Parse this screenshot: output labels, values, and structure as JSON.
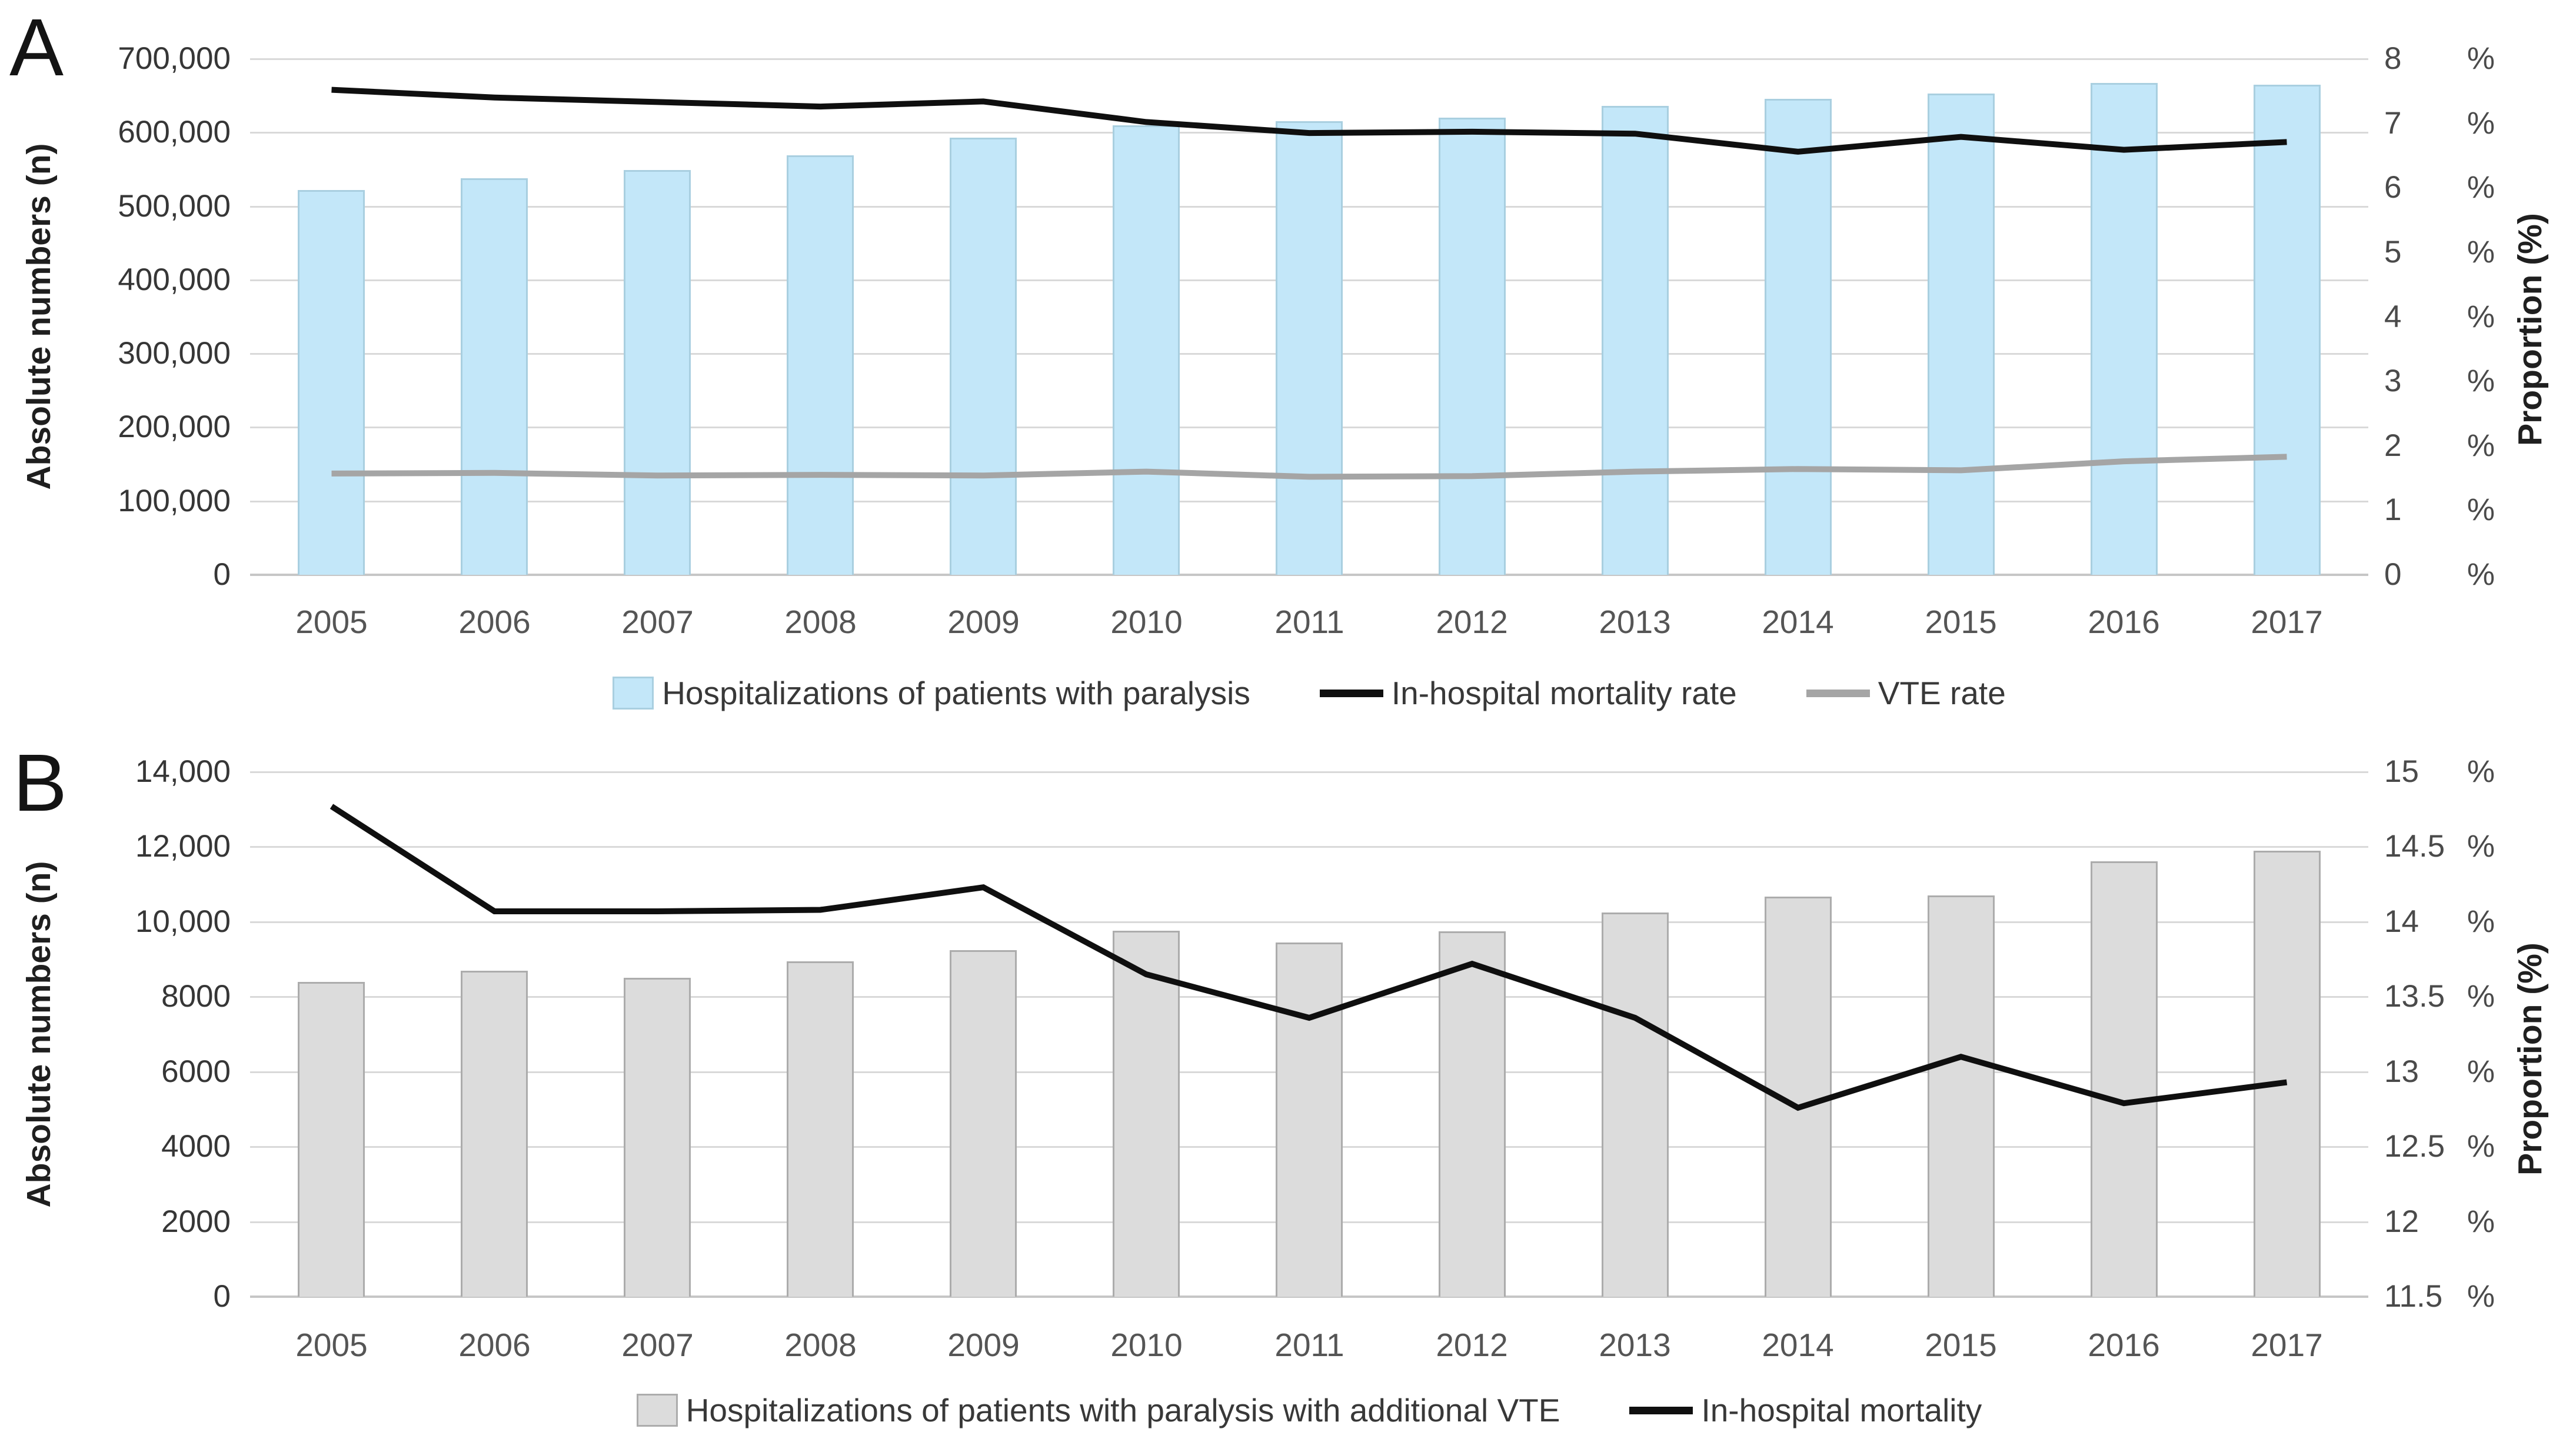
{
  "page": {
    "background": "#ffffff"
  },
  "colors": {
    "gridline": "#d9d9d9",
    "baseline": "#c6c6c6",
    "bar_blue_fill": "#c3e7f9",
    "bar_blue_border": "#a9cfe0",
    "bar_gray_fill": "#dcdcdc",
    "bar_gray_border": "#acacac",
    "line_black": "#0f0f0f",
    "line_gray": "#a5a5a5"
  },
  "chart_data": [
    {
      "type": "bar+line",
      "panel_letter": "A",
      "categories": [
        "2005",
        "2006",
        "2007",
        "2008",
        "2009",
        "2010",
        "2011",
        "2012",
        "2013",
        "2014",
        "2015",
        "2016",
        "2017"
      ],
      "left_axis": {
        "title": "Absolute numbers (n)",
        "min": 0,
        "max": 700000,
        "tick_labels": [
          "700,000",
          "600,000",
          "500,000",
          "400,000",
          "300,000",
          "200,000",
          "100,000",
          "0"
        ]
      },
      "right_axis": {
        "title": "Proportion (%)",
        "min": 0,
        "max": 8,
        "tick_labels": [
          "8 %",
          "7 %",
          "6 %",
          "5 %",
          "4 %",
          "3 %",
          "2 %",
          "1 %",
          "0 %"
        ]
      },
      "series": [
        {
          "name": "Hospitalizations of patients with paralysis",
          "type": "bar",
          "axis": "left",
          "fill": "#c3e7f9",
          "border": "#a9cfe0",
          "values": [
            522000,
            538000,
            549000,
            569000,
            593000,
            610000,
            615000,
            620000,
            636000,
            646000,
            653000,
            667000,
            665000
          ]
        },
        {
          "name": "In-hospital mortality rate",
          "type": "line",
          "axis": "right",
          "color": "#0f0f0f",
          "values": [
            7.52,
            7.4,
            7.33,
            7.26,
            7.34,
            7.02,
            6.85,
            6.87,
            6.84,
            6.56,
            6.79,
            6.59,
            6.71
          ]
        },
        {
          "name": "VTE rate",
          "type": "line",
          "axis": "right",
          "color": "#a5a5a5",
          "values": [
            1.57,
            1.58,
            1.54,
            1.55,
            1.54,
            1.6,
            1.52,
            1.53,
            1.6,
            1.64,
            1.62,
            1.76,
            1.83
          ]
        }
      ],
      "legend_position": "bottom-center",
      "grid": true
    },
    {
      "type": "bar+line",
      "panel_letter": "B",
      "categories": [
        "2005",
        "2006",
        "2007",
        "2008",
        "2009",
        "2010",
        "2011",
        "2012",
        "2013",
        "2014",
        "2015",
        "2016",
        "2017"
      ],
      "left_axis": {
        "title": "Absolute numbers (n)",
        "min": 0,
        "max": 14000,
        "tick_labels": [
          "14,000",
          "12,000",
          "10,000",
          "8000",
          "6000",
          "4000",
          "2000",
          "0"
        ]
      },
      "right_axis": {
        "title": "Proportion (%)",
        "min": 11.5,
        "max": 15,
        "tick_labels": [
          "15 %",
          "14.5%",
          "14 %",
          "13.5%",
          "13 %",
          "12.5%",
          "12 %",
          "11.5%"
        ]
      },
      "series": [
        {
          "name": "Hospitalizations of patients with paralysis with additional VTE",
          "type": "bar",
          "axis": "left",
          "fill": "#dcdcdc",
          "border": "#acacac",
          "values": [
            8400,
            8700,
            8500,
            8950,
            9250,
            9760,
            9450,
            9740,
            10250,
            10680,
            10700,
            11620,
            11890
          ]
        },
        {
          "name": "In-hospital mortality",
          "type": "line",
          "axis": "right",
          "color": "#0f0f0f",
          "values": [
            14.77,
            14.07,
            14.07,
            14.08,
            14.23,
            13.65,
            13.36,
            13.72,
            13.36,
            12.76,
            13.1,
            12.79,
            12.93
          ]
        }
      ],
      "legend_position": "bottom-center",
      "grid": true
    }
  ]
}
